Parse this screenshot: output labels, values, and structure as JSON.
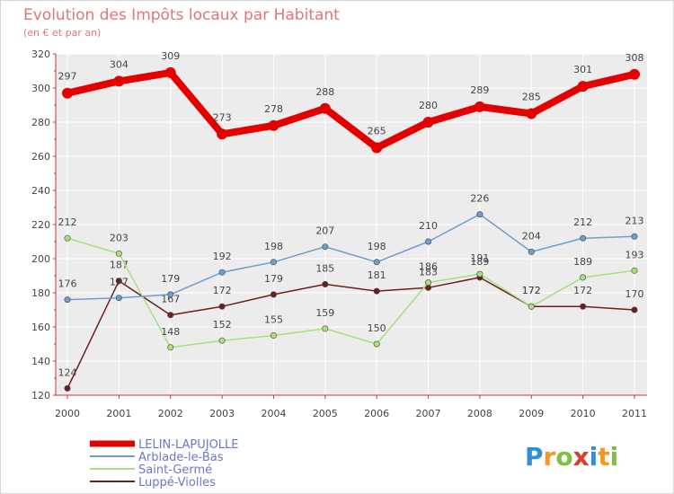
{
  "chart_data": {
    "type": "line",
    "title": "Evolution des Impôts locaux par Habitant",
    "subtitle": "(en € et par an)",
    "x": [
      "2000",
      "2001",
      "2002",
      "2003",
      "2004",
      "2005",
      "2006",
      "2007",
      "2008",
      "2009",
      "2010",
      "2011"
    ],
    "ylim": [
      120,
      320
    ],
    "yticks": [
      120,
      140,
      160,
      180,
      200,
      220,
      240,
      260,
      280,
      300,
      320
    ],
    "grid": true,
    "legend_position": "bottom-left",
    "series": [
      {
        "name": "LELIN-LAPUJOLLE",
        "color": "#e50000",
        "values": [
          297,
          304,
          309,
          273,
          278,
          288,
          265,
          280,
          289,
          285,
          301,
          308
        ]
      },
      {
        "name": "Arblade-le-Bas",
        "color": "#6b9fd0",
        "values": [
          176,
          177,
          179,
          192,
          198,
          207,
          198,
          210,
          226,
          204,
          212,
          213
        ]
      },
      {
        "name": "Saint-Germé",
        "color": "#a8e07a",
        "values": [
          212,
          203,
          148,
          152,
          155,
          159,
          150,
          186,
          191,
          172,
          189,
          193
        ]
      },
      {
        "name": "Luppé-Violles",
        "color": "#6b1f1f",
        "values": [
          124,
          187,
          167,
          172,
          179,
          185,
          181,
          183,
          189,
          172,
          172,
          170
        ]
      }
    ]
  },
  "brand": {
    "letters": [
      "P",
      "r",
      "o",
      "x",
      "i",
      "t",
      "i"
    ],
    "colors": [
      "#2f8fd8",
      "#f39a1e",
      "#7cc242",
      "#e03a2f",
      "#2f8fd8",
      "#f39a1e",
      "#7cc242"
    ]
  }
}
